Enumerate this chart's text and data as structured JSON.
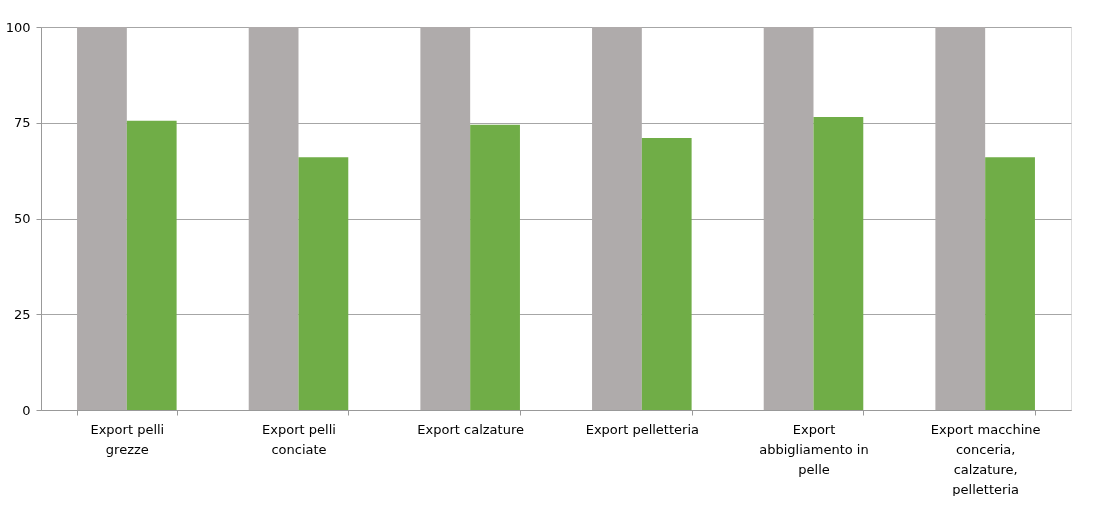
{
  "chart_data": {
    "type": "bar",
    "categories": [
      "Export pelli grezze",
      "Export pelli conciate",
      "Export calzature",
      "Export pelletteria",
      "Export abbigliamento in pelle",
      "Export macchine conceria, calzature, pelletteria"
    ],
    "series": [
      {
        "color": "#afabab",
        "values": [
          100,
          100,
          100,
          100,
          100,
          100
        ]
      },
      {
        "color": "#70ad47",
        "values": [
          75.5,
          66,
          74.5,
          71,
          76.5,
          66
        ]
      }
    ],
    "ylim": [
      0,
      100
    ],
    "yticks": [
      0,
      25,
      50,
      75,
      100
    ],
    "grid": "y",
    "legend": false
  }
}
